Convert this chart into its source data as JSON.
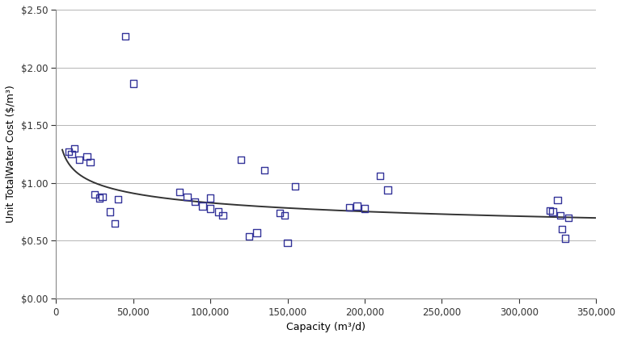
{
  "title": "",
  "xlabel": "Capacity (m³/d)",
  "ylabel": "Unit TotalWater Cost ($/m³)",
  "xlim": [
    0,
    350000
  ],
  "ylim": [
    0.0,
    2.5
  ],
  "xticks": [
    0,
    50000,
    100000,
    150000,
    200000,
    250000,
    300000,
    350000
  ],
  "yticks": [
    0.0,
    0.5,
    1.0,
    1.5,
    2.0,
    2.5
  ],
  "scatter_x": [
    8000,
    10000,
    12000,
    15000,
    20000,
    22000,
    25000,
    28000,
    30000,
    35000,
    38000,
    40000,
    45000,
    50000,
    80000,
    85000,
    90000,
    95000,
    100000,
    100000,
    105000,
    108000,
    120000,
    125000,
    130000,
    135000,
    145000,
    148000,
    150000,
    155000,
    190000,
    195000,
    200000,
    210000,
    215000,
    320000,
    322000,
    325000,
    327000,
    328000,
    330000,
    332000
  ],
  "scatter_y": [
    1.27,
    1.25,
    1.3,
    1.2,
    1.23,
    1.18,
    0.9,
    0.87,
    0.88,
    0.75,
    0.65,
    0.86,
    2.27,
    1.86,
    0.92,
    0.88,
    0.84,
    0.8,
    0.87,
    0.78,
    0.75,
    0.72,
    1.2,
    0.54,
    0.57,
    1.11,
    0.74,
    0.72,
    0.48,
    0.97,
    0.79,
    0.8,
    0.78,
    1.06,
    0.94,
    0.76,
    0.75,
    0.85,
    0.72,
    0.6,
    0.52,
    0.7
  ],
  "marker_color": "#333399",
  "marker_facecolor": "none",
  "marker_size": 6,
  "curve_color": "#333333",
  "curve_a": 4.01,
  "curve_b": -0.137,
  "curve_xstart": 4000,
  "curve_xend": 350000,
  "background_color": "#ffffff",
  "grid_color": "#aaaaaa"
}
